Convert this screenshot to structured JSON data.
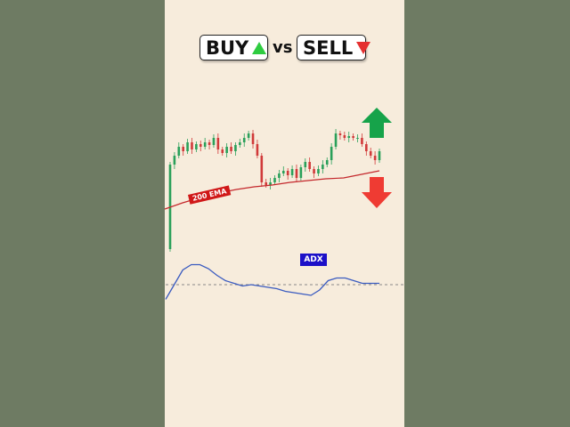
{
  "title": {
    "buy": "BUY",
    "vs": "vs",
    "sell": "SELL"
  },
  "colors": {
    "up": "#2aa05a",
    "down": "#d13a3a",
    "ema": "#c4282c",
    "adx": "#3a5bc0",
    "buy_triangle": "#2ecc40",
    "sell_triangle": "#e53030",
    "up_arrow": "#16a34a",
    "down_arrow": "#ef3b33"
  },
  "icons": {
    "up": "green-up-arrow-icon",
    "down": "red-down-arrow-icon"
  },
  "chart_data": [
    {
      "type": "candlestick",
      "title": "",
      "close": [
        115,
        125,
        135,
        130,
        140,
        132,
        138,
        135,
        140,
        137,
        145,
        132,
        128,
        135,
        130,
        137,
        140,
        145,
        150,
        138,
        125,
        95,
        92,
        95,
        100,
        105,
        108,
        103,
        110,
        100,
        112,
        118,
        110,
        105,
        110,
        115,
        120,
        135,
        150,
        148,
        145,
        147,
        145,
        145,
        138,
        130,
        125,
        120,
        130
      ],
      "first_open": 20,
      "ema_label": "200 EMA",
      "ema": [
        65,
        72,
        78,
        83,
        87,
        90,
        92,
        95,
        97,
        99,
        100,
        104,
        108
      ]
    },
    {
      "type": "line",
      "label": "ADX",
      "values": [
        14,
        25,
        36,
        40,
        40,
        37,
        32,
        28,
        26,
        24,
        25,
        24,
        23,
        22,
        20,
        19,
        18,
        17,
        21,
        28,
        30,
        30,
        28,
        26,
        26,
        26
      ],
      "reference_level": 25
    }
  ]
}
